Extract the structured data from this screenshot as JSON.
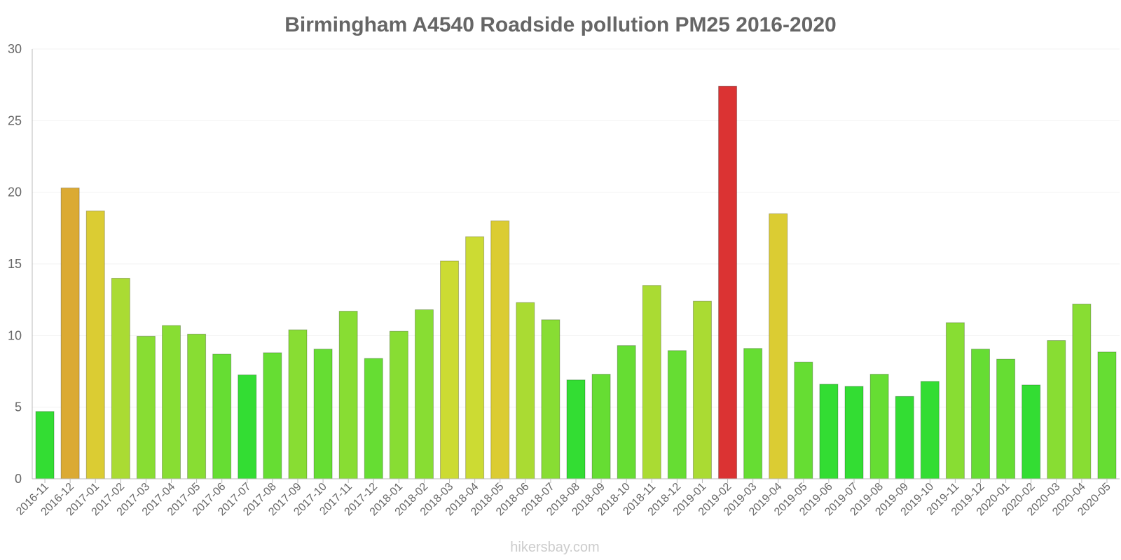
{
  "chart_data": {
    "type": "bar",
    "title": "Birmingham A4540 Roadside pollution PM25 2016-2020",
    "xlabel": "",
    "ylabel": "",
    "ylim": [
      0,
      30
    ],
    "yticks": [
      0,
      5,
      10,
      15,
      20,
      25,
      30
    ],
    "grid": true,
    "categories": [
      "2016-11",
      "2016-12",
      "2017-01",
      "2017-02",
      "2017-03",
      "2017-04",
      "2017-05",
      "2017-06",
      "2017-07",
      "2017-08",
      "2017-09",
      "2017-10",
      "2017-11",
      "2017-12",
      "2018-01",
      "2018-02",
      "2018-03",
      "2018-04",
      "2018-05",
      "2018-06",
      "2018-07",
      "2018-08",
      "2018-09",
      "2018-10",
      "2018-11",
      "2018-12",
      "2019-01",
      "2019-02",
      "2019-03",
      "2019-04",
      "2019-05",
      "2019-06",
      "2019-07",
      "2019-08",
      "2019-09",
      "2019-10",
      "2019-11",
      "2019-12",
      "2020-01",
      "2020-02",
      "2020-03",
      "2020-04",
      "2020-05"
    ],
    "values": [
      4.7,
      20.3,
      18.7,
      14.0,
      9.95,
      10.7,
      10.1,
      8.7,
      7.25,
      8.8,
      10.4,
      9.05,
      11.7,
      8.4,
      10.3,
      11.8,
      15.2,
      16.9,
      18.0,
      12.3,
      11.1,
      6.9,
      7.3,
      9.3,
      13.5,
      8.95,
      12.4,
      27.4,
      9.1,
      18.5,
      8.15,
      6.6,
      6.45,
      7.3,
      5.75,
      6.8,
      10.9,
      9.05,
      8.35,
      6.55,
      9.65,
      12.2,
      8.85
    ],
    "colors": [
      "#33dd33",
      "#dbaa33",
      "#dbcc33",
      "#aadb33",
      "#88dd33",
      "#88dd33",
      "#88dd33",
      "#66dd33",
      "#33dd33",
      "#66dd33",
      "#88dd33",
      "#66dd33",
      "#88dd33",
      "#66dd33",
      "#88dd33",
      "#88dd33",
      "#ccdb33",
      "#ccdb33",
      "#dbcc33",
      "#aadb33",
      "#88dd33",
      "#33dd33",
      "#66dd33",
      "#66dd33",
      "#aadb33",
      "#66dd33",
      "#aadb33",
      "#db3333",
      "#66dd33",
      "#dbcc33",
      "#66dd33",
      "#33dd33",
      "#33dd33",
      "#66dd33",
      "#33dd33",
      "#33dd33",
      "#88dd33",
      "#66dd33",
      "#66dd33",
      "#33dd33",
      "#88dd33",
      "#88dd33",
      "#66dd33"
    ]
  },
  "watermark": "hikersbay.com"
}
